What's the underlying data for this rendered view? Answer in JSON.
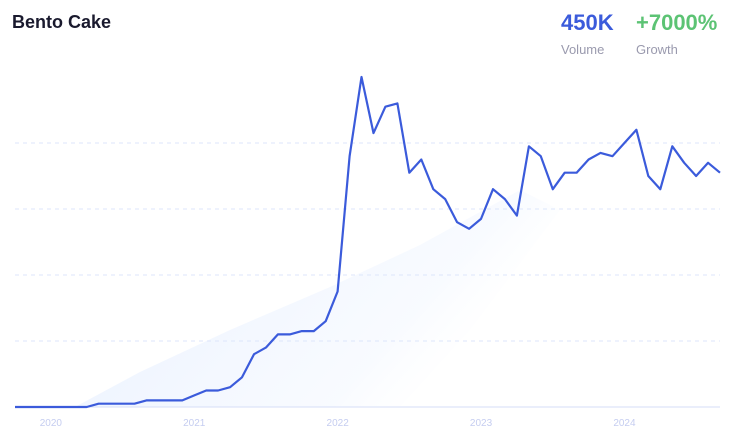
{
  "header": {
    "title": "Bento Cake",
    "volume_value": "450K",
    "volume_label": "Volume",
    "growth_value": "+7000%",
    "growth_label": "Growth"
  },
  "chart_data": {
    "type": "line",
    "title": "Bento Cake",
    "xlabel": "",
    "ylabel": "",
    "x_ticks": [
      "2020",
      "2021",
      "2022",
      "2023",
      "2024"
    ],
    "x_start": "2019-10",
    "x_end": "2024-09",
    "x_interval": "month",
    "ylim": [
      0,
      100
    ],
    "grid": true,
    "line_color": "#3b5bdb",
    "values": [
      0,
      0,
      0,
      0,
      0,
      0,
      0,
      1,
      1,
      1,
      1,
      2,
      2,
      2,
      2,
      3.5,
      5,
      5,
      6,
      9,
      16,
      18,
      22,
      22,
      23,
      23,
      26,
      35,
      76,
      100,
      83,
      91,
      92,
      71,
      75,
      66,
      63,
      56,
      54,
      57,
      66,
      63,
      58,
      79,
      76,
      66,
      71,
      71,
      75,
      77,
      76,
      80,
      84,
      70,
      66,
      79,
      74,
      70,
      74,
      71
    ]
  }
}
